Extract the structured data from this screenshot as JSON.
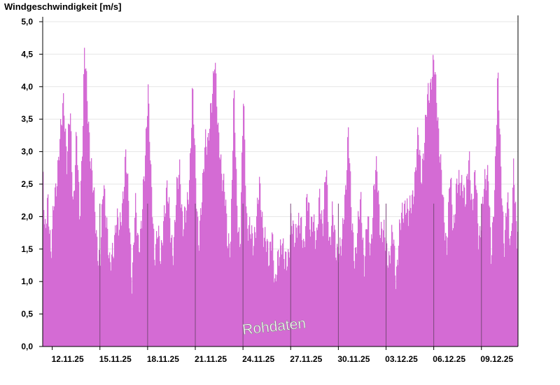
{
  "chart_data": {
    "type": "bar",
    "title": "Windgeschwindigkeit [m/s]",
    "ylim": [
      0,
      5
    ],
    "yticks": [
      "0,0",
      "0,5",
      "1,0",
      "1,5",
      "2,0",
      "2,5",
      "3,0",
      "3,5",
      "4,0",
      "4,5",
      "5,0"
    ],
    "xticks": [
      "12.11.25",
      "15.11.25",
      "18.11.25",
      "21.11.25",
      "24.11.25",
      "27.11.25",
      "30.11.25",
      "03.12.25",
      "06.12.25",
      "09.12.25"
    ],
    "x_range_days": [
      11.4,
      41.3
    ],
    "watermark": "Rohdaten",
    "bar_color": "#d46bd4",
    "grid": true,
    "series": [
      {
        "values": [
          [
            11.4,
            2.6
          ],
          [
            11.5,
            1.6
          ],
          [
            11.7,
            2.4
          ],
          [
            11.9,
            1.3
          ],
          [
            12.1,
            2.3
          ],
          [
            12.3,
            2.7
          ],
          [
            12.5,
            3.2
          ],
          [
            12.7,
            3.9
          ],
          [
            12.9,
            2.8
          ],
          [
            13.1,
            3.6
          ],
          [
            13.3,
            2.2
          ],
          [
            13.5,
            3.2
          ],
          [
            13.7,
            2.0
          ],
          [
            13.9,
            3.4
          ],
          [
            14.0,
            4.5
          ],
          [
            14.2,
            3.7
          ],
          [
            14.4,
            2.9
          ],
          [
            14.6,
            2.2
          ],
          [
            14.8,
            1.6
          ],
          [
            15.0,
            1.3
          ],
          [
            15.2,
            2.5
          ],
          [
            15.4,
            2.0
          ],
          [
            15.6,
            1.1
          ],
          [
            15.8,
            1.5
          ],
          [
            16.0,
            2.0
          ],
          [
            16.2,
            1.7
          ],
          [
            16.4,
            2.3
          ],
          [
            16.6,
            2.9
          ],
          [
            16.8,
            2.1
          ],
          [
            17.0,
            1.0
          ],
          [
            17.2,
            2.1
          ],
          [
            17.4,
            1.6
          ],
          [
            17.6,
            1.9
          ],
          [
            17.8,
            2.7
          ],
          [
            18.0,
            4.1
          ],
          [
            18.2,
            2.4
          ],
          [
            18.4,
            1.4
          ],
          [
            18.6,
            1.9
          ],
          [
            18.8,
            1.2
          ],
          [
            19.0,
            2.1
          ],
          [
            19.2,
            2.4
          ],
          [
            19.4,
            1.8
          ],
          [
            19.6,
            1.5
          ],
          [
            19.8,
            2.3
          ],
          [
            20.0,
            2.8
          ],
          [
            20.2,
            1.8
          ],
          [
            20.4,
            2.0
          ],
          [
            20.6,
            2.6
          ],
          [
            20.8,
            3.9
          ],
          [
            21.0,
            2.6
          ],
          [
            21.2,
            1.6
          ],
          [
            21.4,
            2.2
          ],
          [
            21.6,
            3.3
          ],
          [
            21.8,
            3.1
          ],
          [
            22.0,
            3.7
          ],
          [
            22.2,
            4.6
          ],
          [
            22.4,
            3.2
          ],
          [
            22.6,
            2.8
          ],
          [
            22.8,
            2.5
          ],
          [
            23.0,
            1.5
          ],
          [
            23.2,
            1.7
          ],
          [
            23.4,
            3.9
          ],
          [
            23.6,
            2.1
          ],
          [
            23.8,
            1.6
          ],
          [
            24.0,
            3.8
          ],
          [
            24.2,
            2.0
          ],
          [
            24.4,
            1.8
          ],
          [
            24.6,
            1.5
          ],
          [
            24.8,
            2.0
          ],
          [
            25.0,
            2.4
          ],
          [
            25.2,
            1.9
          ],
          [
            25.4,
            1.7
          ],
          [
            25.6,
            1.2
          ],
          [
            25.8,
            1.9
          ],
          [
            26.0,
            0.8
          ],
          [
            26.2,
            1.4
          ],
          [
            26.4,
            1.7
          ],
          [
            26.6,
            1.2
          ],
          [
            26.8,
            1.4
          ],
          [
            27.0,
            1.9
          ],
          [
            27.2,
            1.6
          ],
          [
            27.4,
            2.0
          ],
          [
            27.6,
            1.8
          ],
          [
            27.8,
            1.5
          ],
          [
            28.0,
            2.4
          ],
          [
            28.2,
            1.7
          ],
          [
            28.4,
            2.1
          ],
          [
            28.6,
            1.5
          ],
          [
            28.8,
            2.3
          ],
          [
            29.0,
            1.9
          ],
          [
            29.2,
            2.7
          ],
          [
            29.4,
            1.6
          ],
          [
            29.6,
            2.1
          ],
          [
            29.8,
            1.4
          ],
          [
            30.0,
            1.6
          ],
          [
            30.2,
            1.5
          ],
          [
            30.4,
            2.3
          ],
          [
            30.6,
            3.4
          ],
          [
            30.8,
            1.9
          ],
          [
            31.0,
            1.4
          ],
          [
            31.2,
            1.8
          ],
          [
            31.4,
            2.2
          ],
          [
            31.6,
            1.3
          ],
          [
            31.8,
            1.9
          ],
          [
            32.0,
            1.5
          ],
          [
            32.2,
            2.4
          ],
          [
            32.4,
            2.7
          ],
          [
            32.6,
            1.9
          ],
          [
            32.8,
            1.7
          ],
          [
            33.0,
            1.5
          ],
          [
            33.2,
            1.4
          ],
          [
            33.4,
            1.7
          ],
          [
            33.6,
            1.1
          ],
          [
            33.8,
            1.7
          ],
          [
            34.0,
            2.0
          ],
          [
            34.2,
            2.3
          ],
          [
            34.4,
            1.9
          ],
          [
            34.6,
            2.3
          ],
          [
            34.8,
            2.6
          ],
          [
            35.0,
            3.2
          ],
          [
            35.2,
            2.7
          ],
          [
            35.4,
            3.1
          ],
          [
            35.6,
            3.9
          ],
          [
            35.8,
            4.1
          ],
          [
            36.0,
            4.3
          ],
          [
            36.2,
            3.7
          ],
          [
            36.4,
            2.8
          ],
          [
            36.6,
            2.0
          ],
          [
            36.8,
            1.6
          ],
          [
            37.0,
            2.6
          ],
          [
            37.2,
            1.8
          ],
          [
            37.4,
            2.5
          ],
          [
            37.6,
            2.4
          ],
          [
            37.8,
            2.6
          ],
          [
            38.0,
            2.2
          ],
          [
            38.2,
            2.9
          ],
          [
            38.4,
            2.2
          ],
          [
            38.6,
            2.6
          ],
          [
            38.8,
            1.7
          ],
          [
            39.0,
            2.0
          ],
          [
            39.2,
            2.5
          ],
          [
            39.4,
            2.8
          ],
          [
            39.6,
            1.2
          ],
          [
            39.8,
            2.4
          ],
          [
            40.0,
            4.3
          ],
          [
            40.2,
            2.6
          ],
          [
            40.4,
            1.6
          ],
          [
            40.6,
            2.3
          ],
          [
            40.8,
            1.4
          ],
          [
            41.0,
            2.9
          ],
          [
            41.2,
            1.5
          ],
          [
            41.3,
            1.9
          ]
        ]
      }
    ]
  }
}
